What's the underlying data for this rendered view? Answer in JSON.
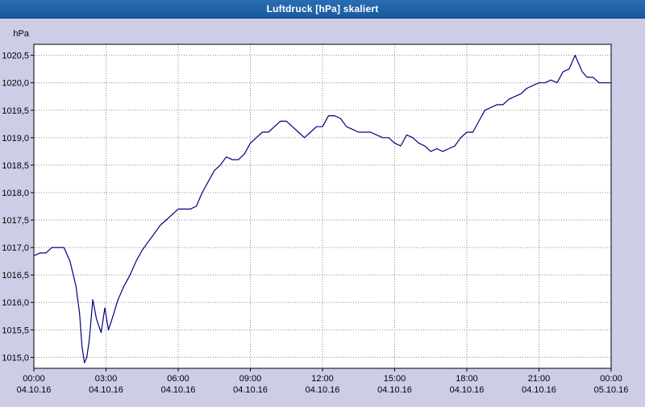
{
  "window": {
    "title": "Luftdruck [hPa] skaliert"
  },
  "colors": {
    "titlebar_bg": "#1c61a7",
    "titlebar_text": "#ffffff",
    "frame_bg": "#cdcde8",
    "plot_bg": "#ffffff",
    "plot_border": "#000000",
    "grid": "#8a8a8a",
    "line": "#000080",
    "text": "#000000"
  },
  "chart_data": {
    "type": "line",
    "title": "Luftdruck [hPa] skaliert",
    "ylabel": "hPa",
    "xlabel": "",
    "legend": "none",
    "grid": "dotted",
    "ylim": [
      1014.8,
      1020.7
    ],
    "xlim_hours": [
      0,
      24
    ],
    "y_ticks": [
      {
        "value": 1020.5,
        "label": "1020,5"
      },
      {
        "value": 1020.0,
        "label": "1020,0"
      },
      {
        "value": 1019.5,
        "label": "1019,5"
      },
      {
        "value": 1019.0,
        "label": "1019,0"
      },
      {
        "value": 1018.5,
        "label": "1018,5"
      },
      {
        "value": 1018.0,
        "label": "1018,0"
      },
      {
        "value": 1017.5,
        "label": "1017,5"
      },
      {
        "value": 1017.0,
        "label": "1017,0"
      },
      {
        "value": 1016.5,
        "label": "1016,5"
      },
      {
        "value": 1016.0,
        "label": "1016,0"
      },
      {
        "value": 1015.5,
        "label": "1015,5"
      },
      {
        "value": 1015.0,
        "label": "1015,0"
      }
    ],
    "x_ticks": [
      {
        "hour": 0,
        "time": "00:00",
        "date": "04.10.16"
      },
      {
        "hour": 3,
        "time": "03:00",
        "date": "04.10.16"
      },
      {
        "hour": 6,
        "time": "06:00",
        "date": "04.10.16"
      },
      {
        "hour": 9,
        "time": "09:00",
        "date": "04.10.16"
      },
      {
        "hour": 12,
        "time": "12:00",
        "date": "04.10.16"
      },
      {
        "hour": 15,
        "time": "15:00",
        "date": "04.10.16"
      },
      {
        "hour": 18,
        "time": "18:00",
        "date": "04.10.16"
      },
      {
        "hour": 21,
        "time": "21:00",
        "date": "04.10.16"
      },
      {
        "hour": 24,
        "time": "00:00",
        "date": "05.10.16"
      }
    ],
    "unit_label": "hPa",
    "points": [
      [
        0.0,
        1016.85
      ],
      [
        0.25,
        1016.9
      ],
      [
        0.5,
        1016.9
      ],
      [
        0.75,
        1017.0
      ],
      [
        1.0,
        1017.0
      ],
      [
        1.25,
        1017.0
      ],
      [
        1.5,
        1016.75
      ],
      [
        1.75,
        1016.3
      ],
      [
        1.9,
        1015.8
      ],
      [
        2.0,
        1015.2
      ],
      [
        2.1,
        1014.9
      ],
      [
        2.2,
        1015.0
      ],
      [
        2.3,
        1015.3
      ],
      [
        2.45,
        1016.05
      ],
      [
        2.6,
        1015.7
      ],
      [
        2.8,
        1015.45
      ],
      [
        2.95,
        1015.9
      ],
      [
        3.1,
        1015.5
      ],
      [
        3.25,
        1015.7
      ],
      [
        3.5,
        1016.05
      ],
      [
        3.75,
        1016.3
      ],
      [
        4.0,
        1016.5
      ],
      [
        4.25,
        1016.75
      ],
      [
        4.5,
        1016.95
      ],
      [
        4.75,
        1017.1
      ],
      [
        5.0,
        1017.25
      ],
      [
        5.25,
        1017.4
      ],
      [
        5.5,
        1017.5
      ],
      [
        5.75,
        1017.6
      ],
      [
        6.0,
        1017.7
      ],
      [
        6.25,
        1017.7
      ],
      [
        6.5,
        1017.7
      ],
      [
        6.75,
        1017.75
      ],
      [
        7.0,
        1018.0
      ],
      [
        7.25,
        1018.2
      ],
      [
        7.5,
        1018.4
      ],
      [
        7.75,
        1018.5
      ],
      [
        8.0,
        1018.65
      ],
      [
        8.25,
        1018.6
      ],
      [
        8.5,
        1018.6
      ],
      [
        8.75,
        1018.7
      ],
      [
        9.0,
        1018.9
      ],
      [
        9.25,
        1019.0
      ],
      [
        9.5,
        1019.1
      ],
      [
        9.75,
        1019.1
      ],
      [
        10.0,
        1019.2
      ],
      [
        10.25,
        1019.3
      ],
      [
        10.5,
        1019.3
      ],
      [
        10.75,
        1019.2
      ],
      [
        11.0,
        1019.1
      ],
      [
        11.25,
        1019.0
      ],
      [
        11.5,
        1019.1
      ],
      [
        11.75,
        1019.2
      ],
      [
        12.0,
        1019.2
      ],
      [
        12.25,
        1019.4
      ],
      [
        12.5,
        1019.4
      ],
      [
        12.75,
        1019.35
      ],
      [
        13.0,
        1019.2
      ],
      [
        13.25,
        1019.15
      ],
      [
        13.5,
        1019.1
      ],
      [
        13.75,
        1019.1
      ],
      [
        14.0,
        1019.1
      ],
      [
        14.25,
        1019.05
      ],
      [
        14.5,
        1019.0
      ],
      [
        14.75,
        1019.0
      ],
      [
        15.0,
        1018.9
      ],
      [
        15.25,
        1018.85
      ],
      [
        15.5,
        1019.05
      ],
      [
        15.75,
        1019.0
      ],
      [
        16.0,
        1018.9
      ],
      [
        16.25,
        1018.85
      ],
      [
        16.5,
        1018.75
      ],
      [
        16.75,
        1018.8
      ],
      [
        17.0,
        1018.75
      ],
      [
        17.25,
        1018.8
      ],
      [
        17.5,
        1018.85
      ],
      [
        17.75,
        1019.0
      ],
      [
        18.0,
        1019.1
      ],
      [
        18.25,
        1019.1
      ],
      [
        18.5,
        1019.3
      ],
      [
        18.75,
        1019.5
      ],
      [
        19.0,
        1019.55
      ],
      [
        19.25,
        1019.6
      ],
      [
        19.5,
        1019.6
      ],
      [
        19.75,
        1019.7
      ],
      [
        20.0,
        1019.75
      ],
      [
        20.25,
        1019.8
      ],
      [
        20.5,
        1019.9
      ],
      [
        20.75,
        1019.95
      ],
      [
        21.0,
        1020.0
      ],
      [
        21.25,
        1020.0
      ],
      [
        21.5,
        1020.05
      ],
      [
        21.75,
        1020.0
      ],
      [
        22.0,
        1020.2
      ],
      [
        22.25,
        1020.25
      ],
      [
        22.5,
        1020.5
      ],
      [
        22.65,
        1020.35
      ],
      [
        22.8,
        1020.2
      ],
      [
        23.0,
        1020.1
      ],
      [
        23.25,
        1020.1
      ],
      [
        23.5,
        1020.0
      ],
      [
        23.75,
        1020.0
      ],
      [
        24.0,
        1020.0
      ]
    ]
  }
}
